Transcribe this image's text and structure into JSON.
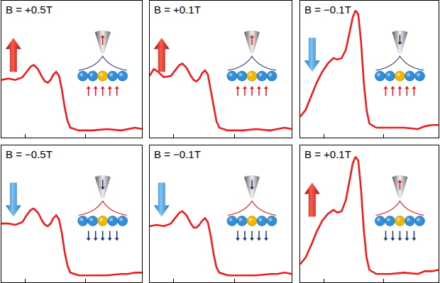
{
  "chart_data": [
    {
      "type": "line",
      "title": "B = +0.5T",
      "color": "#ee1c1c",
      "grid": false,
      "tick_labels": false,
      "xlim": [
        0,
        100
      ],
      "ylim": [
        0,
        100
      ],
      "xticks": [
        17,
        60
      ],
      "x": [
        0,
        5,
        10,
        15,
        18,
        21,
        23,
        26,
        29,
        31,
        33,
        35,
        37,
        39,
        41,
        43,
        45,
        47,
        49,
        55,
        65,
        75,
        85,
        90,
        95,
        100
      ],
      "values": [
        42,
        43,
        42,
        44,
        48,
        52,
        53,
        50,
        44,
        41,
        40,
        42,
        46,
        48,
        45,
        35,
        22,
        12,
        7,
        5,
        5,
        6,
        5,
        6,
        7,
        6
      ]
    },
    {
      "type": "line",
      "title": "B = +0.1T",
      "color": "#ee1c1c",
      "grid": false,
      "tick_labels": false,
      "xlim": [
        0,
        100
      ],
      "ylim": [
        0,
        100
      ],
      "xticks": [
        17,
        60
      ],
      "x": [
        0,
        3,
        6,
        10,
        15,
        18,
        21,
        23,
        26,
        29,
        31,
        33,
        35,
        37,
        39,
        41,
        43,
        45,
        47,
        49,
        55,
        65,
        75,
        85,
        90,
        95,
        100
      ],
      "values": [
        45,
        50,
        48,
        44,
        45,
        49,
        53,
        54,
        51,
        45,
        42,
        41,
        43,
        47,
        49,
        46,
        35,
        22,
        12,
        7,
        5,
        5,
        6,
        5,
        6,
        7,
        6
      ]
    },
    {
      "type": "line",
      "title": "B = −0.1T",
      "color": "#ee1c1c",
      "grid": false,
      "tick_labels": false,
      "xlim": [
        0,
        100
      ],
      "ylim": [
        0,
        100
      ],
      "xticks": [
        17,
        60
      ],
      "x": [
        0,
        4,
        8,
        12,
        16,
        20,
        24,
        27,
        30,
        33,
        36,
        38,
        40,
        42,
        44,
        46,
        48,
        50,
        55,
        65,
        75,
        85,
        90,
        95,
        100
      ],
      "values": [
        15,
        20,
        30,
        40,
        48,
        54,
        58,
        57,
        58,
        64,
        78,
        88,
        93,
        90,
        70,
        40,
        20,
        10,
        7,
        7,
        7,
        6,
        8,
        9,
        9
      ]
    },
    {
      "type": "line",
      "title": "B = −0.5T",
      "color": "#ee1c1c",
      "grid": false,
      "tick_labels": false,
      "xlim": [
        0,
        100
      ],
      "ylim": [
        0,
        100
      ],
      "xticks": [
        17,
        60
      ],
      "x": [
        0,
        5,
        10,
        15,
        18,
        21,
        23,
        26,
        29,
        31,
        33,
        35,
        37,
        39,
        41,
        43,
        45,
        47,
        49,
        55,
        65,
        75,
        85,
        90,
        95,
        100
      ],
      "values": [
        43,
        43,
        42,
        44,
        49,
        53,
        54,
        51,
        45,
        42,
        41,
        43,
        47,
        49,
        46,
        36,
        22,
        12,
        7,
        5,
        5,
        5,
        6,
        6,
        7,
        7
      ]
    },
    {
      "type": "line",
      "title": "B = −0.1T",
      "color": "#ee1c1c",
      "grid": false,
      "tick_labels": false,
      "xlim": [
        0,
        100
      ],
      "ylim": [
        0,
        100
      ],
      "xticks": [
        17,
        60
      ],
      "x": [
        0,
        5,
        10,
        15,
        18,
        21,
        23,
        26,
        29,
        31,
        33,
        35,
        37,
        39,
        41,
        43,
        45,
        47,
        49,
        55,
        65,
        75,
        85,
        90,
        95,
        100
      ],
      "values": [
        41,
        42,
        41,
        43,
        47,
        51,
        52,
        49,
        43,
        40,
        40,
        42,
        45,
        47,
        44,
        34,
        21,
        11,
        7,
        5,
        5,
        5,
        6,
        6,
        7,
        6
      ]
    },
    {
      "type": "line",
      "title": "B = +0.1T",
      "color": "#ee1c1c",
      "grid": false,
      "tick_labels": false,
      "xlim": [
        0,
        100
      ],
      "ylim": [
        0,
        100
      ],
      "xticks": [
        17,
        60
      ],
      "x": [
        0,
        4,
        8,
        12,
        16,
        20,
        24,
        27,
        30,
        33,
        36,
        38,
        40,
        42,
        44,
        46,
        48,
        50,
        55,
        65,
        75,
        85,
        90,
        95,
        100
      ],
      "values": [
        13,
        18,
        27,
        37,
        45,
        50,
        53,
        51,
        52,
        60,
        76,
        87,
        92,
        89,
        68,
        38,
        18,
        9,
        6,
        6,
        7,
        6,
        8,
        8,
        9
      ]
    }
  ]
}
